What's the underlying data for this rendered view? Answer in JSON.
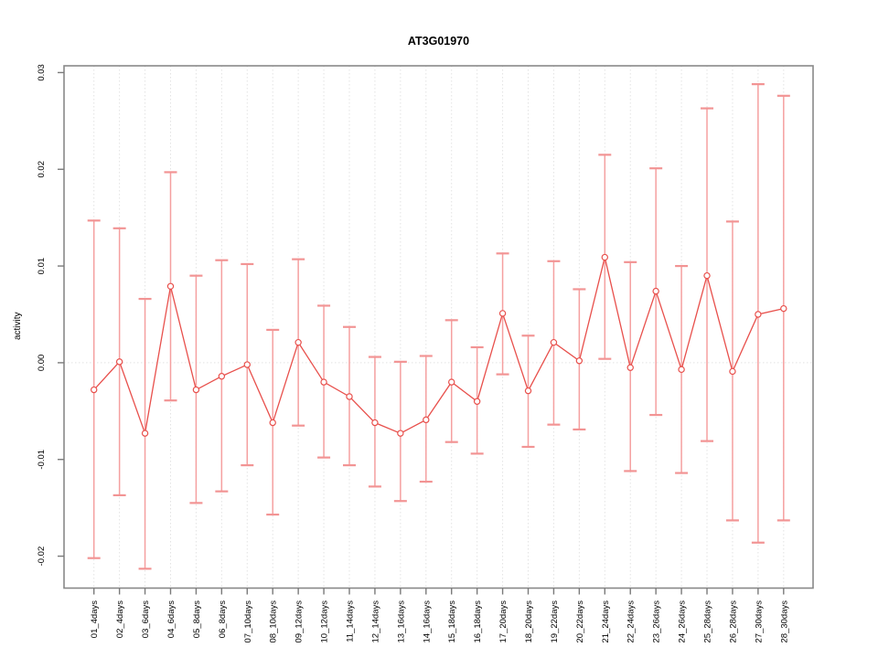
{
  "figure": {
    "background": "#ffffff"
  },
  "chart_data": {
    "type": "line",
    "title": "AT3G01970",
    "xlabel": "",
    "ylabel": "activity",
    "ylim": [
      -0.0233,
      0.0307
    ],
    "yticks": [
      "0.03",
      "0.02",
      "0.01",
      "0.00",
      "-0.01",
      "-0.02"
    ],
    "grid": {
      "vertical_dotted_per_category": true,
      "horizontal_dotted_zero_line": true
    },
    "legend": "none",
    "marker": "open-circle",
    "categories": [
      "01_4days",
      "02_4days",
      "03_6days",
      "04_6days",
      "05_8days",
      "06_8days",
      "07_10days",
      "08_10days",
      "09_12days",
      "10_12days",
      "11_14days",
      "12_14days",
      "13_16days",
      "14_16days",
      "15_18days",
      "16_18days",
      "17_20days",
      "18_20days",
      "19_22days",
      "20_22days",
      "21_24days",
      "22_24days",
      "23_26days",
      "24_26days",
      "25_28days",
      "26_28days",
      "27_30days",
      "28_30days"
    ],
    "series": [
      {
        "name": "activity",
        "values": [
          -0.0028,
          0.0001,
          -0.0073,
          0.0079,
          -0.0028,
          -0.0014,
          -0.0002,
          -0.0062,
          0.0021,
          -0.002,
          -0.0035,
          -0.0062,
          -0.0073,
          -0.0059,
          -0.002,
          -0.004,
          0.0051,
          -0.0029,
          0.0021,
          0.0002,
          0.0109,
          -0.0005,
          0.0074,
          -0.0007,
          0.009,
          -0.0009,
          0.005,
          0.0056
        ]
      }
    ],
    "error_high": [
      0.0147,
      0.0139,
      0.0066,
      0.0197,
      0.009,
      0.0106,
      0.0102,
      0.0034,
      0.0107,
      0.0059,
      0.0037,
      0.0006,
      0.0001,
      0.0007,
      0.0044,
      0.0016,
      0.0113,
      0.0028,
      0.0105,
      0.0076,
      0.0215,
      0.0104,
      0.0201,
      0.01,
      0.0263,
      0.0146,
      0.0288,
      0.0276
    ],
    "error_low": [
      -0.0202,
      -0.0137,
      -0.0213,
      -0.0039,
      -0.0145,
      -0.0133,
      -0.0106,
      -0.0157,
      -0.0065,
      -0.0098,
      -0.0106,
      -0.0128,
      -0.0143,
      -0.0123,
      -0.0082,
      -0.0094,
      -0.0012,
      -0.0087,
      -0.0064,
      -0.0069,
      0.0004,
      -0.0112,
      -0.0054,
      -0.0114,
      -0.0081,
      -0.0163,
      -0.0186,
      -0.0163
    ],
    "colors": {
      "line": "#e8504c",
      "marker_stroke": "#e8504c",
      "marker_fill": "#ffffff",
      "error_bar": "#f5a0a0",
      "error_cap": "#f29494",
      "grid": "#e3e3e3",
      "box": "#888888",
      "tick": "#7a7a7a",
      "text": "#000000"
    }
  }
}
